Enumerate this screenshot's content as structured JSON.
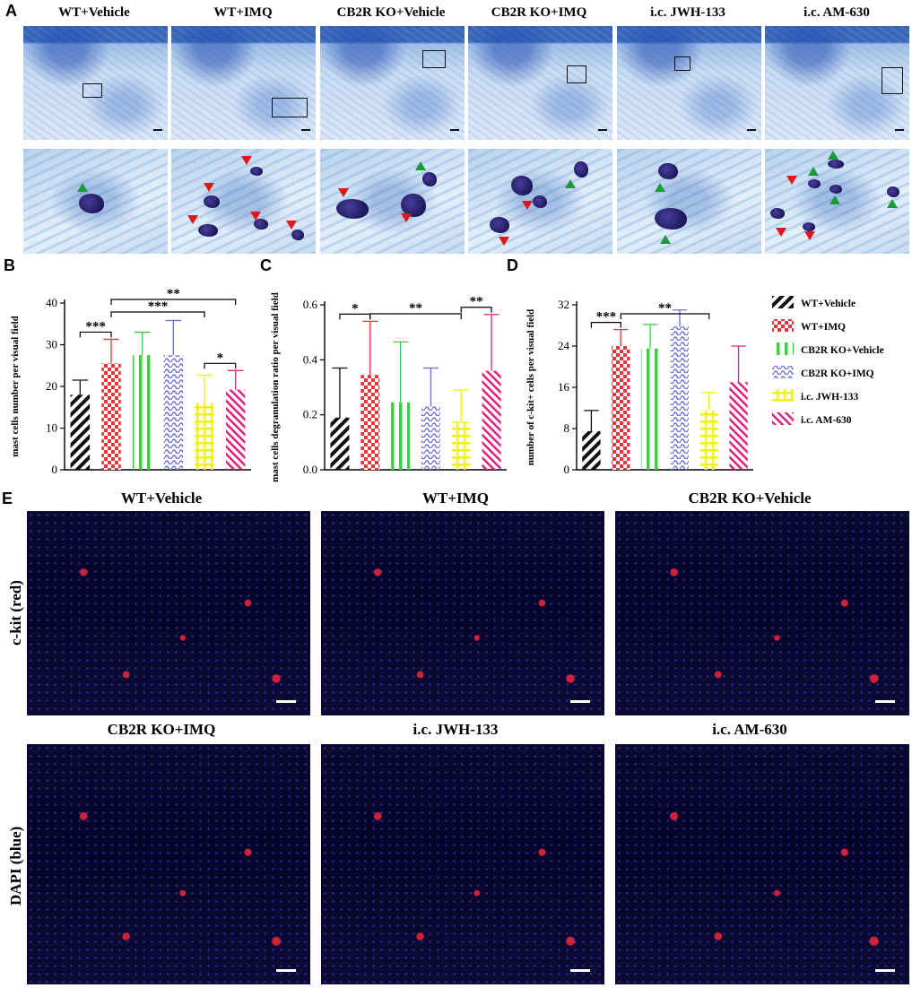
{
  "panel_letters": {
    "a": "A",
    "b": "B",
    "c": "C",
    "d": "D",
    "e": "E"
  },
  "groups": [
    "WT+Vehicle",
    "WT+IMQ",
    "CB2R KO+Vehicle",
    "CB2R KO+IMQ",
    "i.c. JWH-133",
    "i.c. AM-630"
  ],
  "colors": {
    "WT+Vehicle": "#111111",
    "WT+IMQ": "#e8363b",
    "CB2R KO+Vehicle": "#3ad23a",
    "CB2R KO+IMQ": "#6b6bd8",
    "i.c. JWH-133": "#f2ef1a",
    "i.c. AM-630": "#e0207a"
  },
  "chart_data": [
    {
      "panel": "B",
      "type": "bar",
      "ylabel": "mast cells number per visual field",
      "ylim": [
        0,
        40
      ],
      "yticks": [
        0,
        10,
        20,
        30,
        40
      ],
      "categories": [
        "WT+Vehicle",
        "WT+IMQ",
        "CB2R KO+Vehicle",
        "CB2R KO+IMQ",
        "i.c. JWH-133",
        "i.c. AM-630"
      ],
      "values": [
        18,
        25.5,
        27.5,
        27.5,
        16,
        19.2
      ],
      "errors_upper": [
        21.5,
        31.3,
        33,
        35.8,
        22.7,
        23.8
      ],
      "significance": [
        {
          "from": 0,
          "to": 1,
          "label": "***",
          "level": 0
        },
        {
          "from": 1,
          "to": 4,
          "label": "***",
          "level": 1
        },
        {
          "from": 1,
          "to": 5,
          "label": "**",
          "level": 2
        },
        {
          "from": 4,
          "to": 5,
          "label": "*",
          "level": 0
        }
      ]
    },
    {
      "panel": "C",
      "type": "bar",
      "ylabel": "mast cells degranulation ratio per visual field",
      "ylim": [
        0,
        0.6
      ],
      "yticks": [
        0.0,
        0.2,
        0.4,
        0.6
      ],
      "categories": [
        "WT+Vehicle",
        "WT+IMQ",
        "CB2R KO+Vehicle",
        "CB2R KO+IMQ",
        "i.c. JWH-133",
        "i.c. AM-630"
      ],
      "values": [
        0.19,
        0.345,
        0.245,
        0.23,
        0.175,
        0.36
      ],
      "errors_upper": [
        0.37,
        0.54,
        0.465,
        0.37,
        0.29,
        0.565
      ],
      "significance": [
        {
          "from": 0,
          "to": 1,
          "label": "*",
          "level": 0
        },
        {
          "from": 1,
          "to": 4,
          "label": "**",
          "level": 1
        },
        {
          "from": 4,
          "to": 5,
          "label": "**",
          "level": 0
        }
      ]
    },
    {
      "panel": "D",
      "type": "bar",
      "ylabel": "number of c-kit+ cells per visual field",
      "ylim": [
        0,
        32
      ],
      "yticks": [
        0,
        8,
        16,
        24,
        32
      ],
      "categories": [
        "WT+Vehicle",
        "WT+IMQ",
        "CB2R KO+Vehicle",
        "CB2R KO+IMQ",
        "i.c. JWH-133",
        "i.c. AM-630"
      ],
      "values": [
        7.5,
        24,
        23.5,
        27.8,
        11.5,
        17
      ],
      "errors_upper": [
        11.5,
        27.2,
        28.2,
        31,
        15,
        24
      ],
      "significance": [
        {
          "from": 0,
          "to": 1,
          "label": "***",
          "level": 0
        },
        {
          "from": 1,
          "to": 4,
          "label": "**",
          "level": 1
        }
      ]
    }
  ],
  "legend": [
    "WT+Vehicle",
    "WT+IMQ",
    "CB2R KO+Vehicle",
    "CB2R KO+IMQ",
    "i.c. JWH-133",
    "i.c. AM-630"
  ],
  "panel_e": {
    "row_labels": [
      "c-kit (red)",
      "DAPI (blue)"
    ],
    "titles": [
      "WT+Vehicle",
      "WT+IMQ",
      "CB2R KO+Vehicle",
      "CB2R KO+IMQ",
      "i.c. JWH-133",
      "i.c. AM-630"
    ]
  }
}
